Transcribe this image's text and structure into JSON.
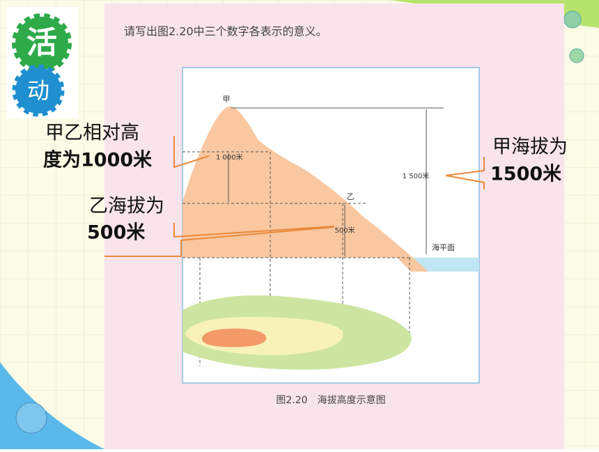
{
  "badge": {
    "top": "活",
    "bottom": "动"
  },
  "prompt": "请写出图2.20中三个数字各表示的意义。",
  "figure": {
    "peak_a": "甲",
    "peak_b": "乙",
    "relative_height": "1 000米",
    "altitude_a": "1 500米",
    "altitude_b": "500米",
    "sea_level": "海平面",
    "caption": "图2.20　海拔高度示意图"
  },
  "annotations": {
    "relative": [
      "甲乙相对高",
      "度为1000米"
    ],
    "altitude_a": [
      "甲海拔为",
      "1500米"
    ],
    "altitude_b": [
      "乙海拔为",
      "500米"
    ]
  }
}
